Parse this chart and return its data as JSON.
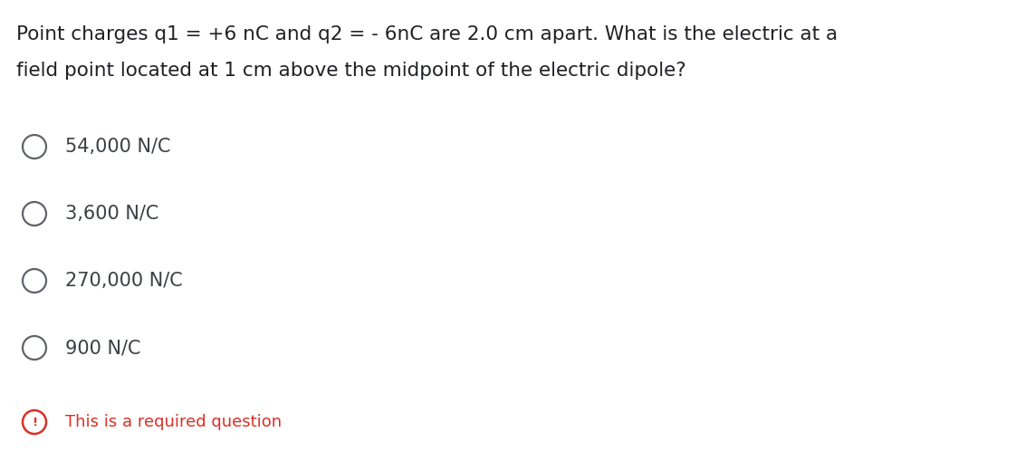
{
  "question_line1": "Point charges q1 = +6 nC and q2 = - 6nC are 2.0 cm apart. What is the electric at a",
  "question_line2": "field point located at 1 cm above the midpoint of the electric dipole?",
  "options": [
    "54,000 N/C",
    "3,600 N/C",
    "270,000 N/C",
    "900 N/C"
  ],
  "required_text": "This is a required question",
  "bg_color": "#ffffff",
  "question_color": "#202124",
  "option_color": "#3c4043",
  "required_color": "#d93025",
  "circle_edge_color": "#5f6368",
  "required_icon_color": "#d93025",
  "question_fontsize": 15.5,
  "option_fontsize": 15.0,
  "required_fontsize": 13.0,
  "fig_width": 11.22,
  "fig_height": 5.2,
  "dpi": 100
}
